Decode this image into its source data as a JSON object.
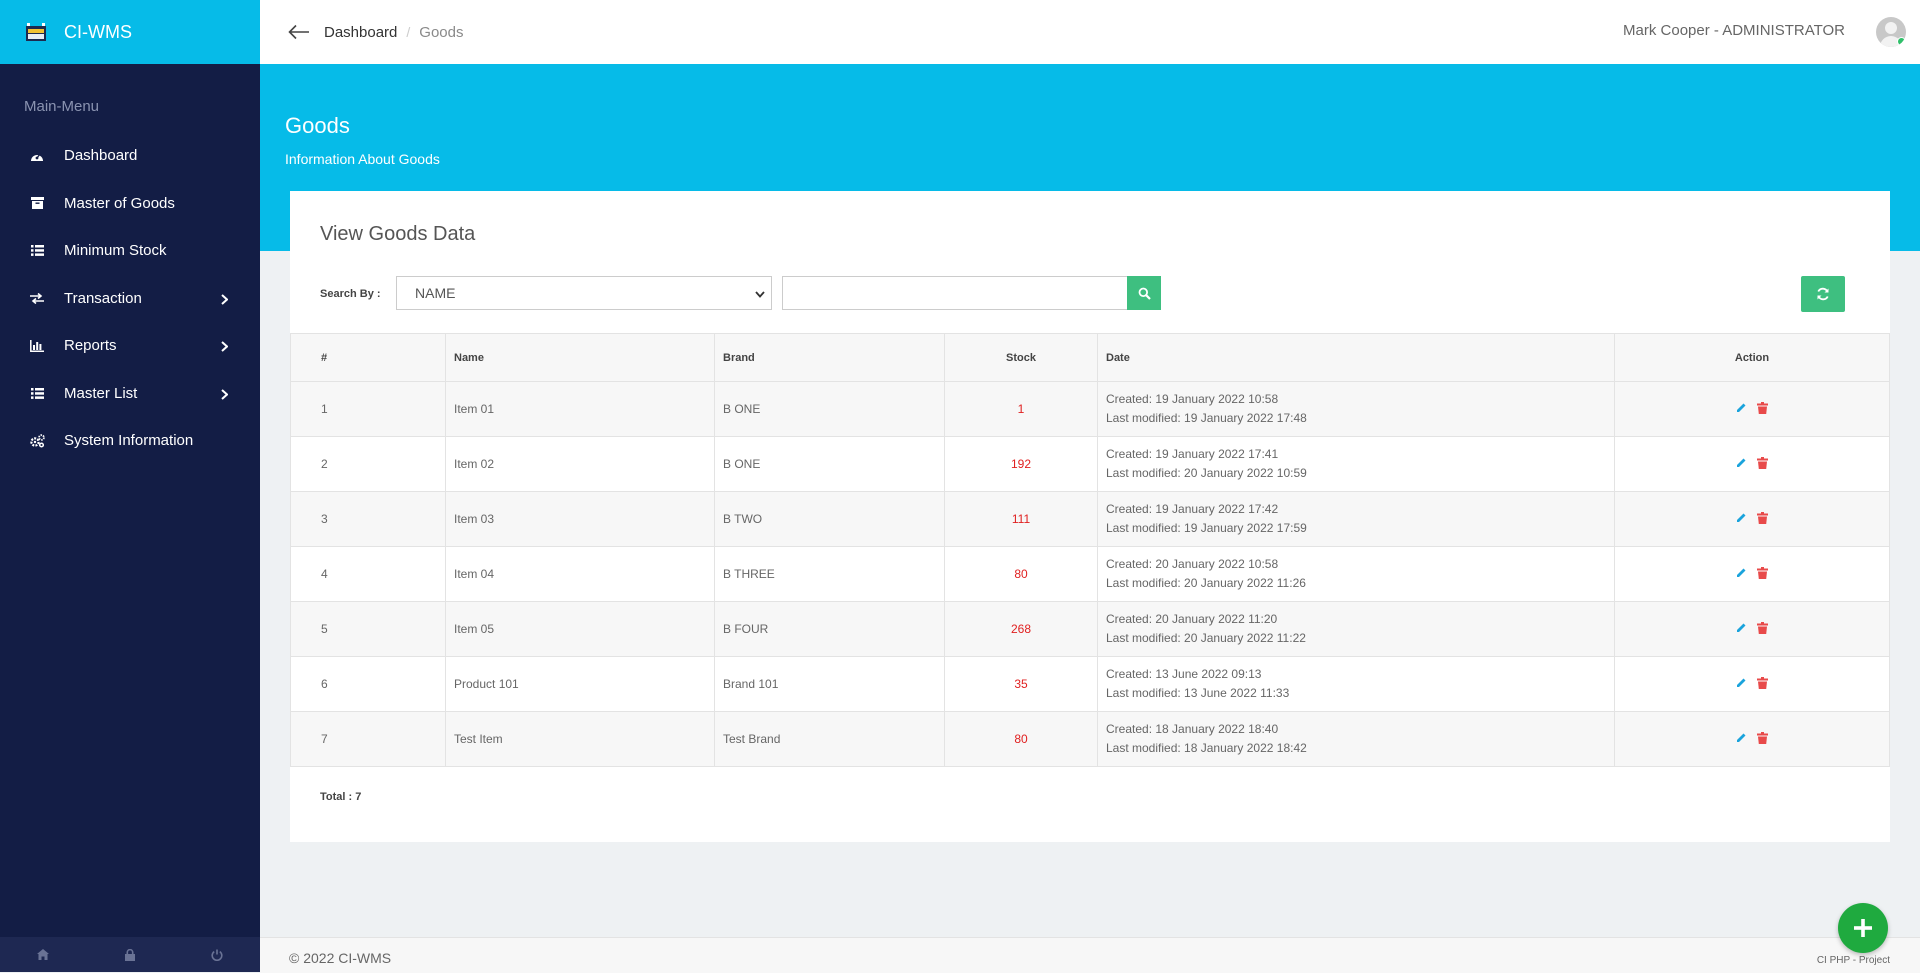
{
  "app": {
    "name": "CI-WMS"
  },
  "sidebar": {
    "heading": "Main-Menu",
    "items": [
      {
        "label": "Dashboard",
        "icon": "dashboard-icon",
        "submenu": false
      },
      {
        "label": "Master of Goods",
        "icon": "archive-icon",
        "submenu": false
      },
      {
        "label": "Minimum Stock",
        "icon": "list-icon",
        "submenu": false
      },
      {
        "label": "Transaction",
        "icon": "exchange-icon",
        "submenu": true
      },
      {
        "label": "Reports",
        "icon": "bar-chart-icon",
        "submenu": true
      },
      {
        "label": "Master List",
        "icon": "list-icon",
        "submenu": true
      },
      {
        "label": "System Information",
        "icon": "cogs-icon",
        "submenu": false
      }
    ],
    "footer_icons": [
      "home-icon",
      "lock-icon",
      "power-icon"
    ]
  },
  "header": {
    "breadcrumb": {
      "root": "Dashboard",
      "separator": "/",
      "current": "Goods"
    },
    "user": "Mark Cooper - ADMINISTRATOR"
  },
  "hero": {
    "title": "Goods",
    "subtitle": "Information About Goods"
  },
  "card": {
    "title": "View Goods Data",
    "search_label": "Search By :",
    "search_by_value": "NAME",
    "search_placeholder": "",
    "columns": [
      "#",
      "Name",
      "Brand",
      "Stock",
      "Date",
      "Action"
    ],
    "rows": [
      {
        "num": "1",
        "name": "Item 01",
        "brand": "B ONE",
        "stock": "1",
        "created": "Created: 19 January 2022 10:58",
        "modified": "Last modified: 19 January 2022 17:48"
      },
      {
        "num": "2",
        "name": "Item 02",
        "brand": "B ONE",
        "stock": "192",
        "created": "Created: 19 January 2022 17:41",
        "modified": "Last modified: 20 January 2022 10:59"
      },
      {
        "num": "3",
        "name": "Item 03",
        "brand": "B TWO",
        "stock": "111",
        "created": "Created: 19 January 2022 17:42",
        "modified": "Last modified: 19 January 2022 17:59"
      },
      {
        "num": "4",
        "name": "Item 04",
        "brand": "B THREE",
        "stock": "80",
        "created": "Created: 20 January 2022 10:58",
        "modified": "Last modified: 20 January 2022 11:26"
      },
      {
        "num": "5",
        "name": "Item 05",
        "brand": "B FOUR",
        "stock": "268",
        "created": "Created: 20 January 2022 11:20",
        "modified": "Last modified: 20 January 2022 11:22"
      },
      {
        "num": "6",
        "name": "Product 101",
        "brand": "Brand 101",
        "stock": "35",
        "created": "Created: 13 June 2022 09:13",
        "modified": "Last modified: 13 June 2022 11:33"
      },
      {
        "num": "7",
        "name": "Test Item",
        "brand": "Test Brand",
        "stock": "80",
        "created": "Created: 18 January 2022 18:40",
        "modified": "Last modified: 18 January 2022 18:42"
      }
    ],
    "total": "Total : 7"
  },
  "footer": {
    "copyright": "© 2022 CI-WMS",
    "project": "CI PHP - Project"
  },
  "colors": {
    "accent": "#06bbe8",
    "sidebar": "#131d45",
    "success": "#3ebf80",
    "danger": "#e02020",
    "fab": "#1faa3f"
  }
}
